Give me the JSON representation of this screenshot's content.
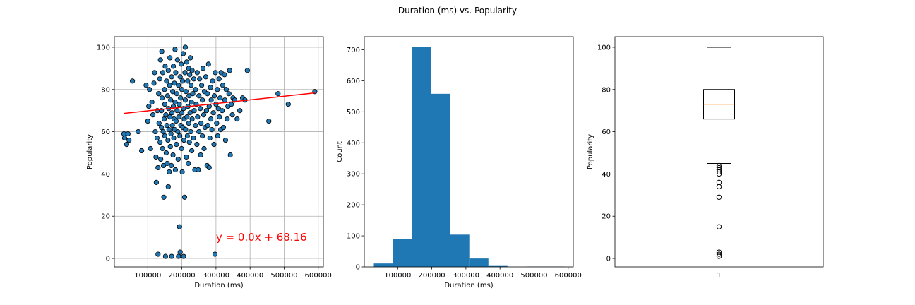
{
  "figure": {
    "suptitle": "Duration (ms) vs. Popularity"
  },
  "chart_data": [
    {
      "type": "scatter",
      "xlabel": "Duration (ms)",
      "ylabel": "Popularity",
      "xlim": [
        2000,
        615000
      ],
      "ylim": [
        -4,
        105
      ],
      "xticks": [
        100000,
        200000,
        300000,
        400000,
        500000,
        600000
      ],
      "yticks": [
        0,
        20,
        40,
        60,
        80,
        100
      ],
      "grid": true,
      "point_color": "#1f77b4",
      "edge_color": "#000000",
      "points": [
        [
          30000,
          59
        ],
        [
          32000,
          57
        ],
        [
          38000,
          54
        ],
        [
          42000,
          59
        ],
        [
          45000,
          56
        ],
        [
          55000,
          84
        ],
        [
          72000,
          60
        ],
        [
          82000,
          51
        ],
        [
          95000,
          82
        ],
        [
          100000,
          65
        ],
        [
          103000,
          72
        ],
        [
          105000,
          80
        ],
        [
          108000,
          52
        ],
        [
          112000,
          74
        ],
        [
          115000,
          68
        ],
        [
          118000,
          83
        ],
        [
          120000,
          88
        ],
        [
          122000,
          60
        ],
        [
          124000,
          48
        ],
        [
          125000,
          36
        ],
        [
          127000,
          57
        ],
        [
          128000,
          70
        ],
        [
          130000,
          43
        ],
        [
          130000,
          2
        ],
        [
          132000,
          78
        ],
        [
          133000,
          64
        ],
        [
          135000,
          85
        ],
        [
          136000,
          55
        ],
        [
          137000,
          94
        ],
        [
          138000,
          47
        ],
        [
          140000,
          62
        ],
        [
          140000,
          70
        ],
        [
          141000,
          98
        ],
        [
          142000,
          76
        ],
        [
          143000,
          52
        ],
        [
          144000,
          88
        ],
        [
          145000,
          60
        ],
        [
          146000,
          44
        ],
        [
          147000,
          29
        ],
        [
          148000,
          66
        ],
        [
          149000,
          80
        ],
        [
          150000,
          73
        ],
        [
          150000,
          58
        ],
        [
          151000,
          91
        ],
        [
          152000,
          1
        ],
        [
          153000,
          68
        ],
        [
          154000,
          50
        ],
        [
          155000,
          84
        ],
        [
          156000,
          63
        ],
        [
          157000,
          45
        ],
        [
          158000,
          77
        ],
        [
          159000,
          56
        ],
        [
          160000,
          89
        ],
        [
          160000,
          34
        ],
        [
          161000,
          71
        ],
        [
          162000,
          61
        ],
        [
          163000,
          41
        ],
        [
          164000,
          82
        ],
        [
          165000,
          67
        ],
        [
          165000,
          95
        ],
        [
          166000,
          53
        ],
        [
          167000,
          75
        ],
        [
          168000,
          59
        ],
        [
          169000,
          44
        ],
        [
          170000,
          86
        ],
        [
          170000,
          1
        ],
        [
          171000,
          69
        ],
        [
          172000,
          63
        ],
        [
          173000,
          79
        ],
        [
          174000,
          49
        ],
        [
          175000,
          91
        ],
        [
          175000,
          72
        ],
        [
          176000,
          57
        ],
        [
          177000,
          66
        ],
        [
          178000,
          83
        ],
        [
          179000,
          61
        ],
        [
          180000,
          99
        ],
        [
          180000,
          74
        ],
        [
          181000,
          42
        ],
        [
          182000,
          88
        ],
        [
          183000,
          65
        ],
        [
          184000,
          54
        ],
        [
          185000,
          78
        ],
        [
          186000,
          70
        ],
        [
          187000,
          94
        ],
        [
          188000,
          60
        ],
        [
          189000,
          47
        ],
        [
          190000,
          82
        ],
        [
          190000,
          1
        ],
        [
          191000,
          67
        ],
        [
          192000,
          73
        ],
        [
          193000,
          15
        ],
        [
          194000,
          58
        ],
        [
          195000,
          86
        ],
        [
          195000,
          3
        ],
        [
          196000,
          76
        ],
        [
          197000,
          63
        ],
        [
          198000,
          92
        ],
        [
          199000,
          52
        ],
        [
          200000,
          80
        ],
        [
          200000,
          69
        ],
        [
          201000,
          41
        ],
        [
          202000,
          84
        ],
        [
          203000,
          62
        ],
        [
          204000,
          97
        ],
        [
          205000,
          71
        ],
        [
          205000,
          1
        ],
        [
          206000,
          56
        ],
        [
          207000,
          66
        ],
        [
          208000,
          29
        ],
        [
          209000,
          88
        ],
        [
          210000,
          75
        ],
        [
          210000,
          100
        ],
        [
          211000,
          61
        ],
        [
          212000,
          79
        ],
        [
          213000,
          48
        ],
        [
          214000,
          93
        ],
        [
          215000,
          67
        ],
        [
          216000,
          58
        ],
        [
          217000,
          84
        ],
        [
          218000,
          72
        ],
        [
          219000,
          45
        ],
        [
          220000,
          90
        ],
        [
          220000,
          64
        ],
        [
          221000,
          77
        ],
        [
          222000,
          55
        ],
        [
          223000,
          87
        ],
        [
          224000,
          69
        ],
        [
          225000,
          95
        ],
        [
          226000,
          60
        ],
        [
          227000,
          82
        ],
        [
          228000,
          74
        ],
        [
          229000,
          51
        ],
        [
          230000,
          89
        ],
        [
          230000,
          66
        ],
        [
          232000,
          78
        ],
        [
          234000,
          57
        ],
        [
          235000,
          85
        ],
        [
          236000,
          70
        ],
        [
          238000,
          42
        ],
        [
          240000,
          80
        ],
        [
          240000,
          63
        ],
        [
          242000,
          73
        ],
        [
          244000,
          54
        ],
        [
          245000,
          88
        ],
        [
          246000,
          67
        ],
        [
          248000,
          42
        ],
        [
          250000,
          77
        ],
        [
          250000,
          60
        ],
        [
          252000,
          85
        ],
        [
          254000,
          71
        ],
        [
          255000,
          49
        ],
        [
          256000,
          64
        ],
        [
          258000,
          82
        ],
        [
          260000,
          75
        ],
        [
          260000,
          58
        ],
        [
          262000,
          90
        ],
        [
          264000,
          68
        ],
        [
          265000,
          52
        ],
        [
          266000,
          79
        ],
        [
          268000,
          62
        ],
        [
          270000,
          86
        ],
        [
          272000,
          70
        ],
        [
          274000,
          44
        ],
        [
          275000,
          78
        ],
        [
          276000,
          63
        ],
        [
          278000,
          92
        ],
        [
          280000,
          72
        ],
        [
          280000,
          43
        ],
        [
          282000,
          57
        ],
        [
          284000,
          81
        ],
        [
          285000,
          66
        ],
        [
          286000,
          75
        ],
        [
          288000,
          61
        ],
        [
          290000,
          84
        ],
        [
          292000,
          69
        ],
        [
          294000,
          54
        ],
        [
          295000,
          77
        ],
        [
          297000,
          2
        ],
        [
          298000,
          88
        ],
        [
          300000,
          73
        ],
        [
          302000,
          64
        ],
        [
          304000,
          80
        ],
        [
          305000,
          58
        ],
        [
          307000,
          71
        ],
        [
          309000,
          85
        ],
        [
          310000,
          67
        ],
        [
          312000,
          76
        ],
        [
          314000,
          61
        ],
        [
          315000,
          88
        ],
        [
          318000,
          70
        ],
        [
          320000,
          82
        ],
        [
          322000,
          62
        ],
        [
          325000,
          87
        ],
        [
          326000,
          75
        ],
        [
          328000,
          56
        ],
        [
          330000,
          80
        ],
        [
          333000,
          66
        ],
        [
          335000,
          72
        ],
        [
          338000,
          78
        ],
        [
          340000,
          89
        ],
        [
          342000,
          49
        ],
        [
          345000,
          73
        ],
        [
          348000,
          68
        ],
        [
          350000,
          76
        ],
        [
          355000,
          75
        ],
        [
          362000,
          66
        ],
        [
          370000,
          70
        ],
        [
          378000,
          76
        ],
        [
          385000,
          75
        ],
        [
          392000,
          89
        ],
        [
          455000,
          65
        ],
        [
          482000,
          78
        ],
        [
          512000,
          73
        ],
        [
          590000,
          79
        ]
      ],
      "trendline": {
        "slope": 1.73e-05,
        "intercept": 68.16,
        "x_range": [
          30000,
          590000
        ],
        "color": "#ff0000"
      },
      "annotation": {
        "text": "y = 0.0x + 68.16",
        "x": 300000,
        "y": 10,
        "color": "#ff0000"
      }
    },
    {
      "type": "bar",
      "subtype": "histogram",
      "xlabel": "Duration (ms)",
      "ylabel": "Count",
      "xlim": [
        2000,
        615000
      ],
      "ylim": [
        0,
        742
      ],
      "xticks": [
        100000,
        200000,
        300000,
        400000,
        500000,
        600000
      ],
      "yticks": [
        0,
        100,
        200,
        300,
        400,
        500,
        600,
        700
      ],
      "bin_edges": [
        30000,
        86000,
        142000,
        198000,
        254000,
        310000,
        366000,
        422000,
        478000,
        534000,
        590000
      ],
      "values": [
        11,
        89,
        709,
        558,
        104,
        27,
        3,
        0,
        1,
        1
      ],
      "color": "#1f77b4"
    },
    {
      "type": "box",
      "xlabel": "",
      "ylabel": "Popularity",
      "ylim": [
        -4,
        105
      ],
      "yticks": [
        0,
        20,
        40,
        60,
        80,
        100
      ],
      "xticks": [
        1
      ],
      "xticklabels": [
        "1"
      ],
      "q1": 66,
      "median": 73,
      "q3": 80,
      "whisker_low": 45,
      "whisker_high": 100,
      "outliers": [
        44,
        43,
        42,
        41,
        40,
        36,
        34,
        29,
        15,
        3,
        2,
        1
      ],
      "median_color": "#ff7f0e"
    }
  ]
}
